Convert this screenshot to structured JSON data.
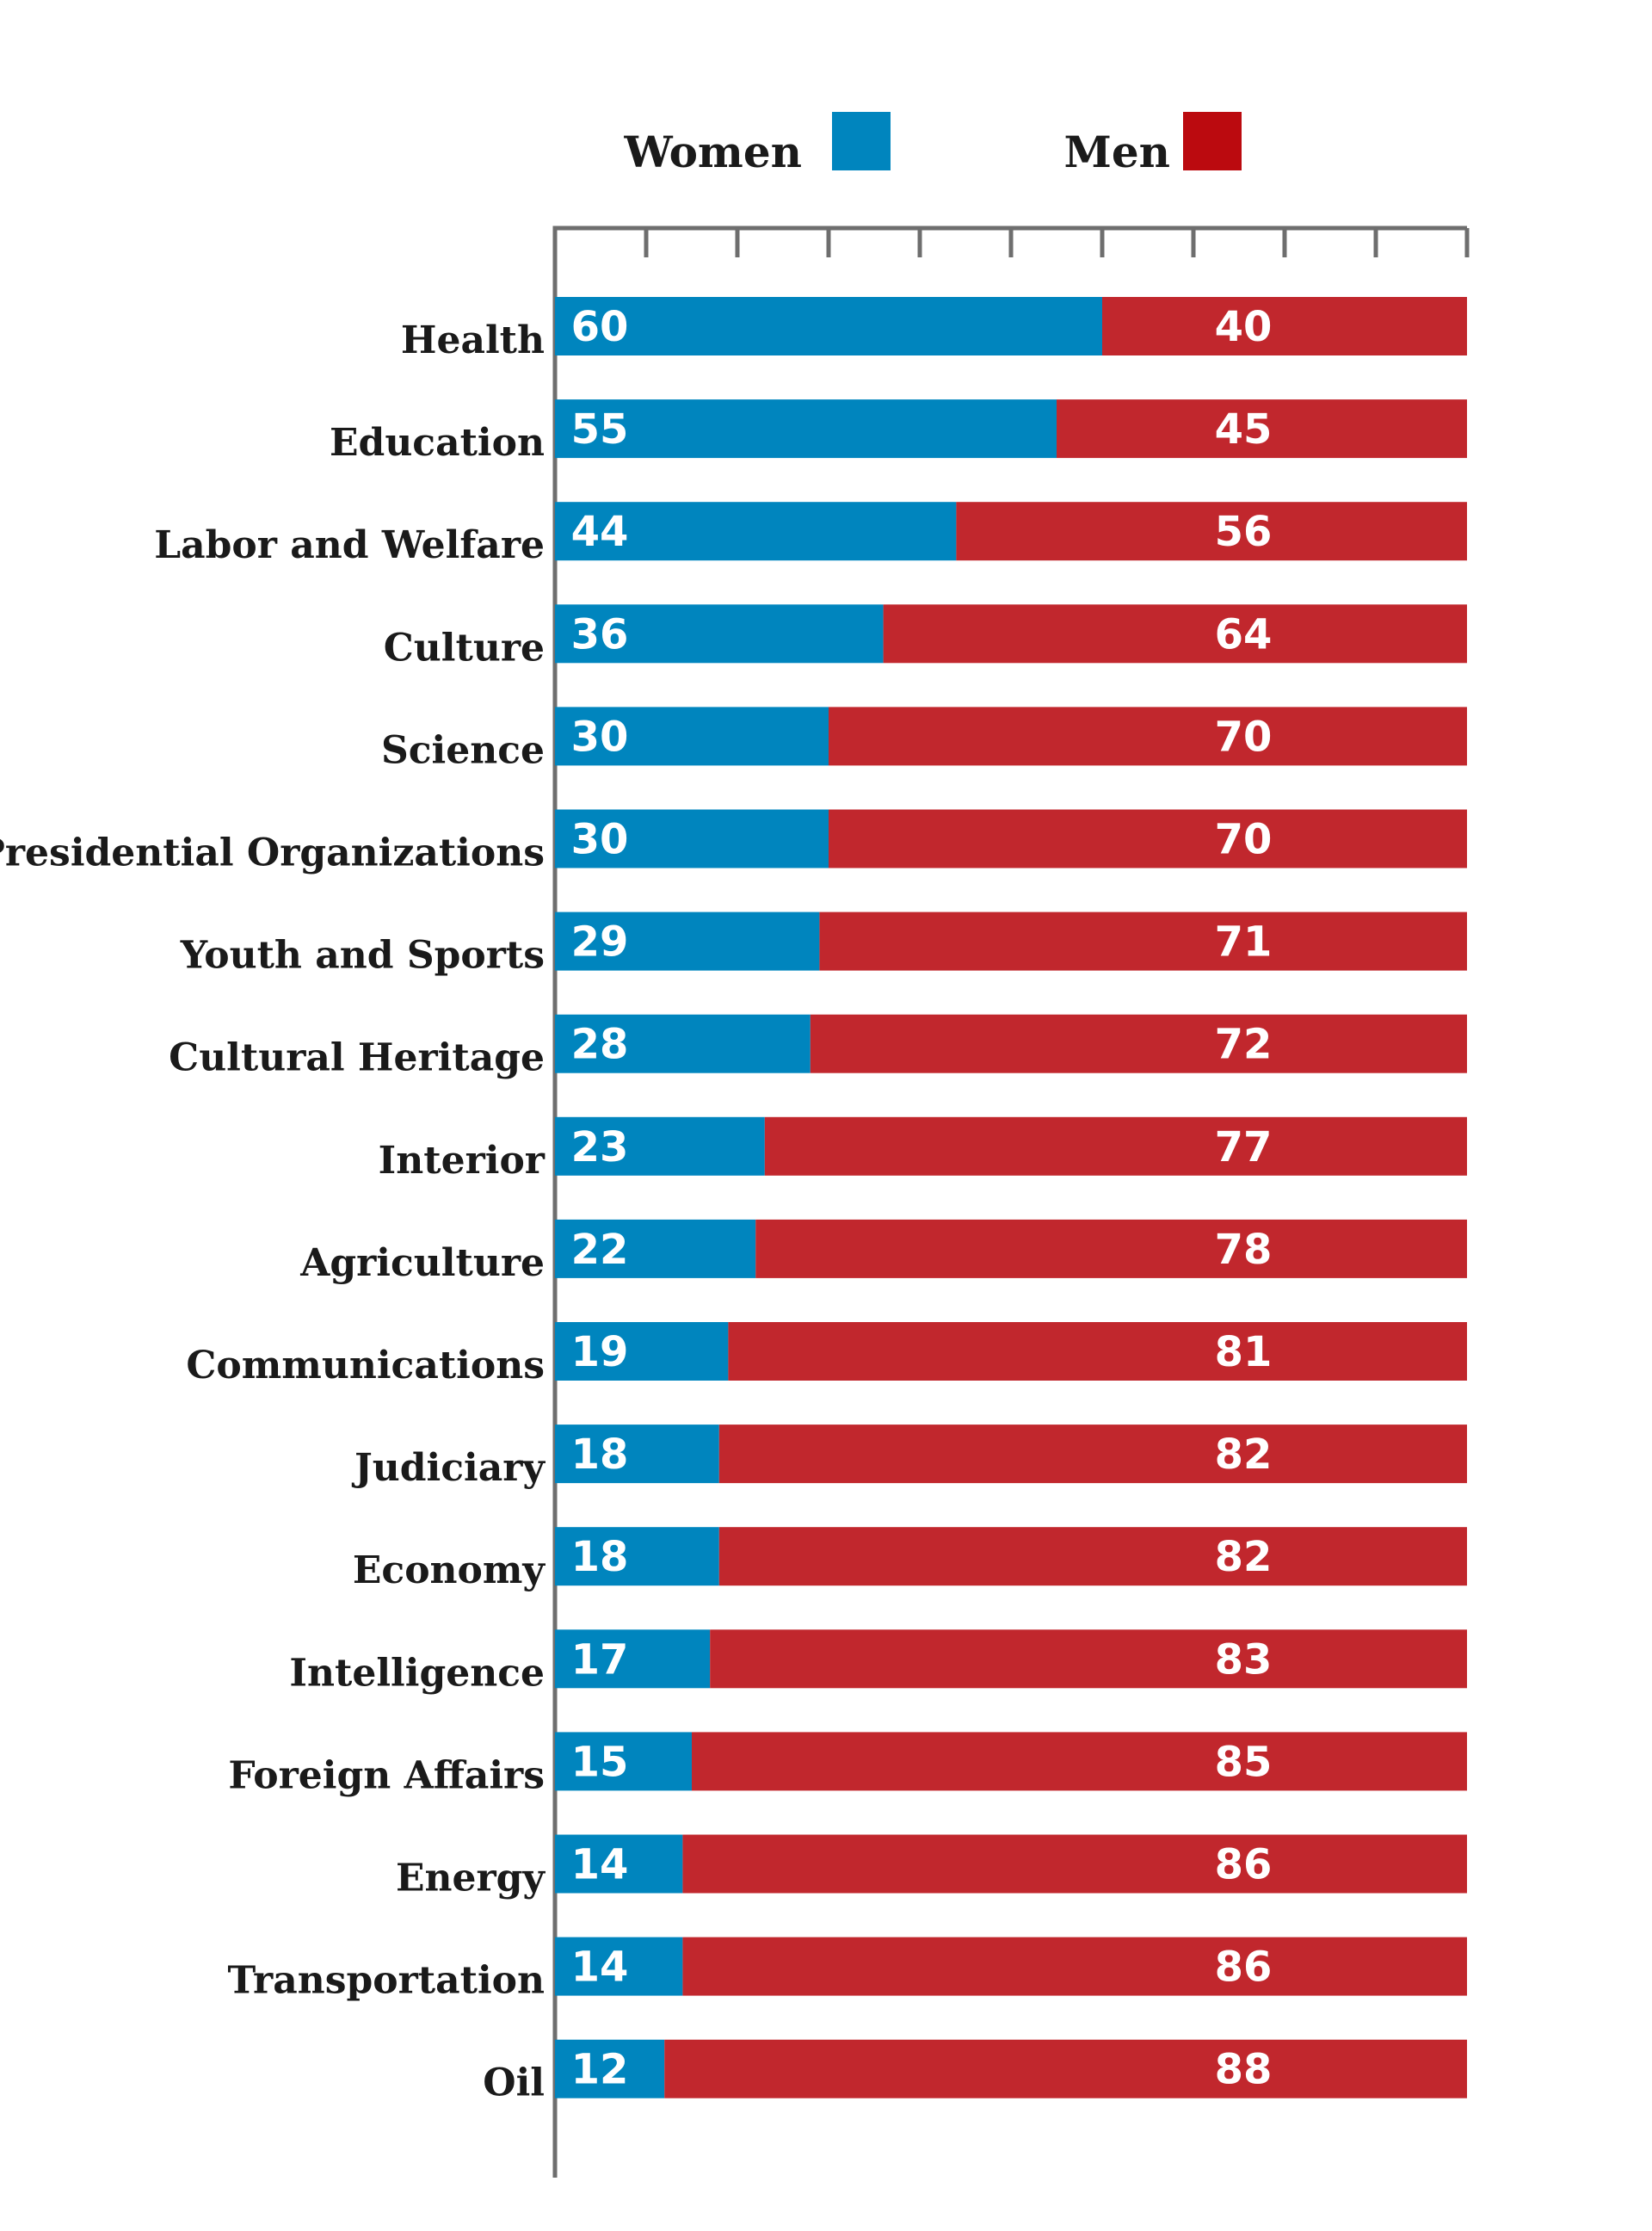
{
  "chart_data": {
    "type": "bar",
    "orientation": "horizontal",
    "stacked": true,
    "xlim": [
      0,
      100
    ],
    "categories": [
      "Health",
      "Education",
      "Labor and Welfare",
      "Culture",
      "Science",
      "Presidential Organizations",
      "Youth and Sports",
      "Cultural Heritage",
      "Interior",
      "Agriculture",
      "Communications",
      "Judiciary",
      "Economy",
      "Intelligence",
      "Foreign Affairs",
      "Energy",
      "Transportation",
      "Oil"
    ],
    "series": [
      {
        "name": "Women",
        "color": "#0085BE",
        "values": [
          60,
          55,
          44,
          36,
          30,
          30,
          29,
          28,
          23,
          22,
          19,
          18,
          18,
          17,
          15,
          14,
          14,
          12
        ]
      },
      {
        "name": "Men",
        "color": "#C1272D",
        "values": [
          40,
          45,
          56,
          64,
          70,
          70,
          71,
          72,
          77,
          78,
          81,
          82,
          82,
          83,
          85,
          86,
          86,
          88
        ]
      }
    ],
    "legend": {
      "placement": "top",
      "items": [
        {
          "label": "Women",
          "color": "#0085BE"
        },
        {
          "label": "Men",
          "color": "#BB0A0F"
        }
      ]
    },
    "grid": false,
    "tick_count": 11
  }
}
